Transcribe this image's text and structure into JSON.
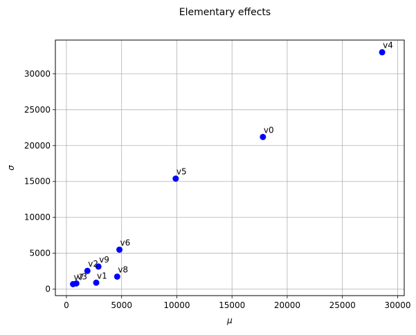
{
  "chart_data": {
    "type": "scatter",
    "title": "Elementary effects",
    "xlabel": "μ",
    "ylabel": "σ",
    "xlim": [
      -1000,
      30600
    ],
    "ylim": [
      -900,
      34700
    ],
    "xticks": [
      0,
      5000,
      10000,
      15000,
      20000,
      25000,
      30000
    ],
    "yticks": [
      0,
      5000,
      10000,
      15000,
      20000,
      25000,
      30000
    ],
    "grid": true,
    "marker_color": "#0000ff",
    "points": [
      {
        "label": "v0",
        "x": 17800,
        "y": 21200
      },
      {
        "label": "v1",
        "x": 2700,
        "y": 900
      },
      {
        "label": "v2",
        "x": 1900,
        "y": 2550
      },
      {
        "label": "v3",
        "x": 900,
        "y": 800
      },
      {
        "label": "v4",
        "x": 28600,
        "y": 33000
      },
      {
        "label": "v5",
        "x": 9900,
        "y": 15400
      },
      {
        "label": "v6",
        "x": 4800,
        "y": 5500
      },
      {
        "label": "v7",
        "x": 600,
        "y": 700
      },
      {
        "label": "v8",
        "x": 4600,
        "y": 1750
      },
      {
        "label": "v9",
        "x": 2900,
        "y": 3150
      }
    ]
  }
}
